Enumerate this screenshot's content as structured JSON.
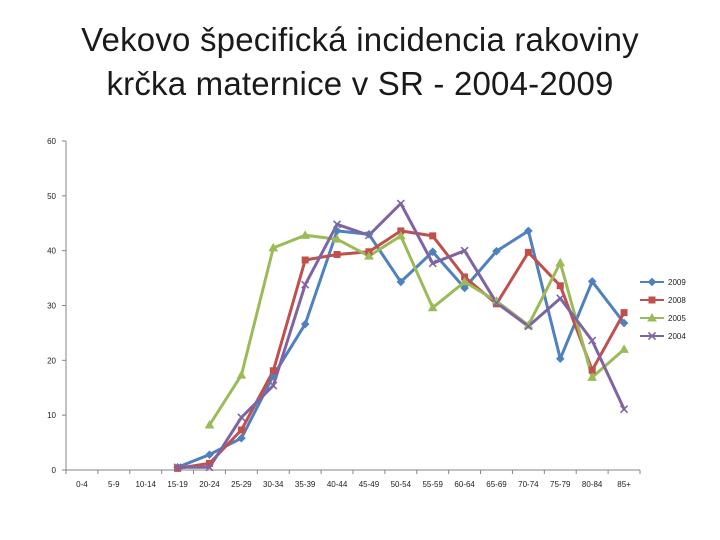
{
  "slide": {
    "title_line1": "Vekovo špecifická incidencia rakoviny",
    "title_line2": "krčka maternice v SR - 2004-2009"
  },
  "chart_data": {
    "type": "line",
    "title": "Vekovo špecifická incidencia rakoviny krčka maternice v SR - 2004-2009",
    "xlabel": "",
    "ylabel": "",
    "categories": [
      "0-4",
      "5-9",
      "10-14",
      "15-19",
      "20-24",
      "25-29",
      "30-34",
      "35-39",
      "40-44",
      "45-49",
      "50-54",
      "55-59",
      "60-64",
      "65-69",
      "70-74",
      "75-79",
      "80-84",
      "85+"
    ],
    "ylim": [
      0,
      60
    ],
    "yticks": [
      0,
      10,
      20,
      30,
      40,
      50,
      60
    ],
    "grid": false,
    "legend_position": "right",
    "series": [
      {
        "name": "2009",
        "color": "#4f81bd",
        "marker": "diamond",
        "values": [
          null,
          null,
          null,
          0.5,
          2.8,
          5.8,
          17.2,
          26.6,
          43.6,
          43.0,
          34.3,
          39.8,
          33.2,
          39.9,
          43.6,
          20.3,
          34.4,
          26.8
        ]
      },
      {
        "name": "2008",
        "color": "#c0504d",
        "marker": "square",
        "values": [
          null,
          null,
          null,
          0.3,
          1.2,
          7.3,
          18.1,
          38.3,
          39.3,
          39.8,
          43.6,
          42.7,
          35.2,
          30.3,
          39.7,
          33.6,
          18.2,
          28.7
        ]
      },
      {
        "name": "2005",
        "color": "#9bbb59",
        "marker": "triangle",
        "values": [
          null,
          null,
          null,
          null,
          8.2,
          17.3,
          40.5,
          42.8,
          42.1,
          39.0,
          42.7,
          29.6,
          34.3,
          30.8,
          26.4,
          37.8,
          16.9,
          22.0
        ]
      },
      {
        "name": "2004",
        "color": "#8064a2",
        "marker": "x",
        "values": [
          null,
          null,
          null,
          0.5,
          0.5,
          9.6,
          15.4,
          33.8,
          44.8,
          42.8,
          48.6,
          37.7,
          40.0,
          30.5,
          26.2,
          31.3,
          23.6,
          11.1
        ]
      }
    ]
  }
}
